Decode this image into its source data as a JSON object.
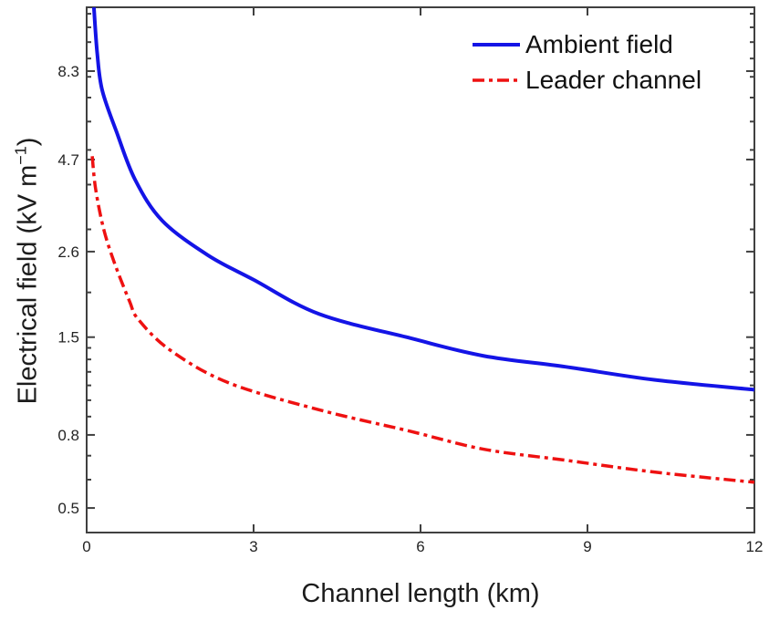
{
  "figure": {
    "background": "#ffffff"
  },
  "chart_data": {
    "type": "line",
    "xlabel": "Channel length (km)",
    "ylabel": "Electrical field (kV m^-1)",
    "ylabel_parts": {
      "pre": "Electrical field (kV m",
      "sup": "−1",
      "post": ")"
    },
    "x_scale": "linear",
    "y_scale": "log",
    "xlim": [
      0,
      12
    ],
    "ylim": [
      0.427,
      12.51
    ],
    "grid": false,
    "axis_color": "#404040",
    "text_color": "#242424",
    "x_ticks": [
      {
        "v": 0,
        "label": "0"
      },
      {
        "v": 3,
        "label": "3"
      },
      {
        "v": 6,
        "label": "6"
      },
      {
        "v": 9,
        "label": "9"
      },
      {
        "v": 12,
        "label": "12"
      }
    ],
    "y_ticks": [
      {
        "v": 8.3,
        "label": "8.3"
      },
      {
        "v": 4.7,
        "label": "4.7"
      },
      {
        "v": 2.6,
        "label": "2.6"
      },
      {
        "v": 1.5,
        "label": "1.5"
      },
      {
        "v": 0.8,
        "label": "0.8"
      },
      {
        "v": 0.5,
        "label": "0.5"
      }
    ],
    "y_minor_ticks": [
      12,
      11,
      10,
      9,
      8,
      7,
      6,
      5,
      4,
      3,
      2,
      1.4,
      1.3,
      1.2,
      1.1,
      1,
      0.9,
      0.7,
      0.6
    ],
    "legend": {
      "position": "top-right",
      "frame": false
    },
    "series": [
      {
        "name": "Ambient field",
        "color": "#1414e6",
        "line_style": "solid",
        "line_width": 4,
        "dash_array": null,
        "points": [
          [
            0.13,
            12.5
          ],
          [
            0.19,
            9.3
          ],
          [
            0.28,
            7.33
          ],
          [
            0.54,
            5.6
          ],
          [
            0.87,
            4.13
          ],
          [
            1.36,
            3.17
          ],
          [
            2.18,
            2.54
          ],
          [
            3.0,
            2.17
          ],
          [
            4.18,
            1.74
          ],
          [
            5.82,
            1.49
          ],
          [
            7.13,
            1.33
          ],
          [
            8.6,
            1.24
          ],
          [
            10.2,
            1.14
          ],
          [
            12.0,
            1.07
          ]
        ]
      },
      {
        "name": "Leader channel",
        "color": "#ee1111",
        "line_style": "dash-dot",
        "line_width": 3.5,
        "dash_array": "13 5 4 5",
        "points": [
          [
            0.1,
            4.8
          ],
          [
            0.16,
            3.9
          ],
          [
            0.3,
            3.03
          ],
          [
            0.49,
            2.44
          ],
          [
            0.77,
            1.89
          ],
          [
            0.93,
            1.68
          ],
          [
            1.5,
            1.38
          ],
          [
            2.54,
            1.12
          ],
          [
            4.18,
            0.94
          ],
          [
            5.8,
            0.82
          ],
          [
            7.13,
            0.73
          ],
          [
            8.6,
            0.68
          ],
          [
            10.2,
            0.63
          ],
          [
            12.0,
            0.59
          ]
        ]
      }
    ]
  }
}
